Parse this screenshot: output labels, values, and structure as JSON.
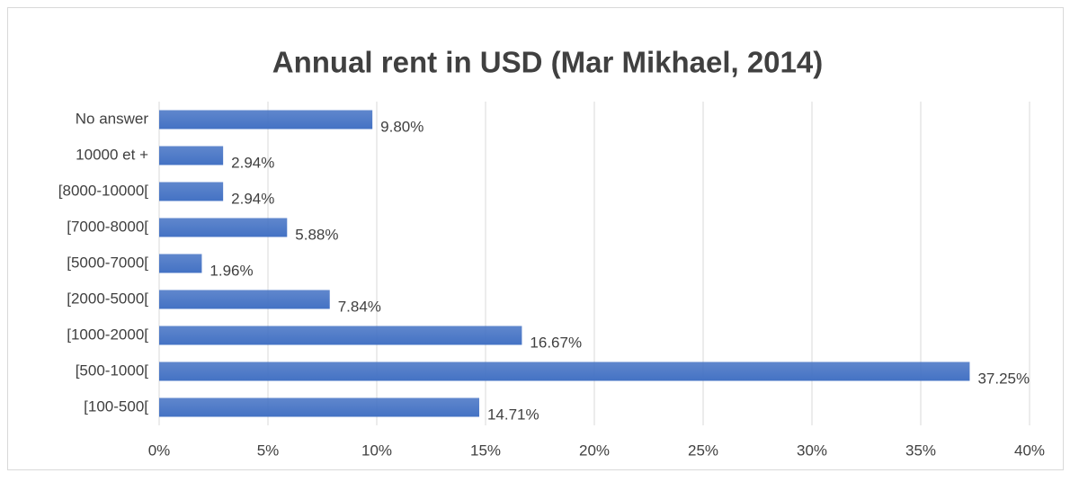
{
  "chart_data": {
    "type": "bar",
    "orientation": "horizontal",
    "title": "Annual rent in USD (Mar Mikhael, 2014)",
    "categories": [
      "No answer",
      "10000 et +",
      "[8000-10000[",
      "[7000-8000[",
      "[5000-7000[",
      "[2000-5000[",
      "[1000-2000[",
      "[500-1000[",
      "[100-500["
    ],
    "values": [
      9.8,
      2.94,
      2.94,
      5.88,
      1.96,
      7.84,
      16.67,
      37.25,
      14.71
    ],
    "value_labels": [
      "9.80%",
      "2.94%",
      "2.94%",
      "5.88%",
      "1.96%",
      "7.84%",
      "16.67%",
      "37.25%",
      "14.71%"
    ],
    "color": "#4472c4",
    "xlim": [
      0,
      40
    ],
    "xticks": [
      {
        "value": 0,
        "label": "0%"
      },
      {
        "value": 5,
        "label": "5%"
      },
      {
        "value": 10,
        "label": "10%"
      },
      {
        "value": 15,
        "label": "15%"
      },
      {
        "value": 20,
        "label": "20%"
      },
      {
        "value": 25,
        "label": "25%"
      },
      {
        "value": 30,
        "label": "30%"
      },
      {
        "value": 35,
        "label": "35%"
      },
      {
        "value": 40,
        "label": "40%"
      }
    ],
    "grid": true
  }
}
